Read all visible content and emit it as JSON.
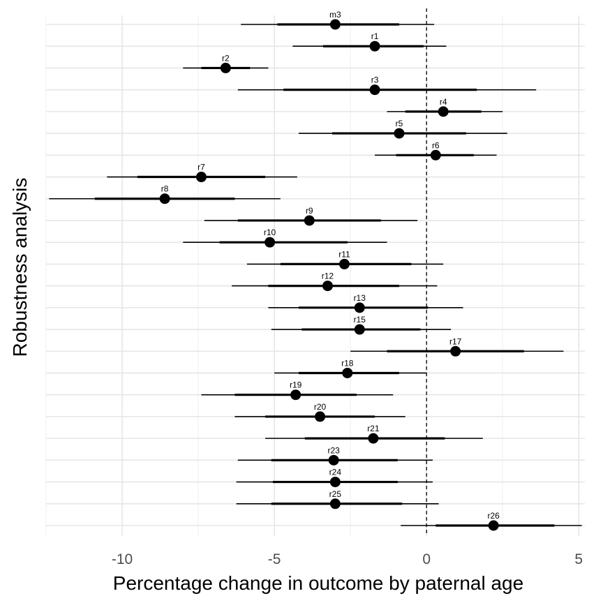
{
  "chart_data": {
    "type": "scatter",
    "title": "",
    "xlabel": "Percentage change in outcome by paternal age",
    "ylabel": "Robustness analysis",
    "xlim": [
      -12.5,
      5.2
    ],
    "x_ticks": [
      -10,
      -5,
      0,
      5
    ],
    "x_tick_labels": [
      "-10",
      "-5",
      "0",
      "5"
    ],
    "reference_line_x": 0,
    "grid": true,
    "legend": "none",
    "point_color": "#000000",
    "points": [
      {
        "label": "m3",
        "estimate": -3.0,
        "inner_low": -4.9,
        "inner_high": -0.9,
        "outer_low": -6.1,
        "outer_high": 0.25
      },
      {
        "label": "r1",
        "estimate": -1.7,
        "inner_low": -3.4,
        "inner_high": -0.1,
        "outer_low": -4.4,
        "outer_high": 0.65
      },
      {
        "label": "r2",
        "estimate": -6.6,
        "inner_low": -7.4,
        "inner_high": -5.8,
        "outer_low": -8.0,
        "outer_high": -5.2
      },
      {
        "label": "r3",
        "estimate": -1.7,
        "inner_low": -4.7,
        "inner_high": 1.65,
        "outer_low": -6.2,
        "outer_high": 3.6
      },
      {
        "label": "r4",
        "estimate": 0.55,
        "inner_low": -0.7,
        "inner_high": 1.8,
        "outer_low": -1.3,
        "outer_high": 2.5
      },
      {
        "label": "r5",
        "estimate": -0.9,
        "inner_low": -3.1,
        "inner_high": 1.3,
        "outer_low": -4.2,
        "outer_high": 2.65
      },
      {
        "label": "r6",
        "estimate": 0.3,
        "inner_low": -1.0,
        "inner_high": 1.55,
        "outer_low": -1.7,
        "outer_high": 2.3
      },
      {
        "label": "r7",
        "estimate": -7.4,
        "inner_low": -9.5,
        "inner_high": -5.3,
        "outer_low": -10.5,
        "outer_high": -4.25
      },
      {
        "label": "r8",
        "estimate": -8.6,
        "inner_low": -10.9,
        "inner_high": -6.3,
        "outer_low": -12.4,
        "outer_high": -4.8
      },
      {
        "label": "r9",
        "estimate": -3.85,
        "inner_low": -6.2,
        "inner_high": -1.5,
        "outer_low": -7.3,
        "outer_high": -0.3
      },
      {
        "label": "r10",
        "estimate": -5.15,
        "inner_low": -6.8,
        "inner_high": -2.6,
        "outer_low": -8.0,
        "outer_high": -1.3
      },
      {
        "label": "r11",
        "estimate": -2.7,
        "inner_low": -4.8,
        "inner_high": -0.5,
        "outer_low": -5.9,
        "outer_high": 0.55
      },
      {
        "label": "r12",
        "estimate": -3.25,
        "inner_low": -5.2,
        "inner_high": -0.9,
        "outer_low": -6.4,
        "outer_high": 0.35
      },
      {
        "label": "r13",
        "estimate": -2.2,
        "inner_low": -4.2,
        "inner_high": 0.05,
        "outer_low": -5.2,
        "outer_high": 1.2
      },
      {
        "label": "r15",
        "estimate": -2.2,
        "inner_low": -4.1,
        "inner_high": -0.2,
        "outer_low": -5.1,
        "outer_high": 0.8
      },
      {
        "label": "r17",
        "estimate": 0.95,
        "inner_low": -1.3,
        "inner_high": 3.2,
        "outer_low": -2.5,
        "outer_high": 4.5
      },
      {
        "label": "r18",
        "estimate": -2.6,
        "inner_low": -4.2,
        "inner_high": -0.9,
        "outer_low": -5.0,
        "outer_high": 0.0
      },
      {
        "label": "r19",
        "estimate": -4.3,
        "inner_low": -6.3,
        "inner_high": -2.3,
        "outer_low": -7.4,
        "outer_high": -1.1
      },
      {
        "label": "r20",
        "estimate": -3.5,
        "inner_low": -5.3,
        "inner_high": -1.7,
        "outer_low": -6.3,
        "outer_high": -0.7
      },
      {
        "label": "r21",
        "estimate": -1.75,
        "inner_low": -4.0,
        "inner_high": 0.6,
        "outer_low": -5.3,
        "outer_high": 1.85
      },
      {
        "label": "r23",
        "estimate": -3.05,
        "inner_low": -5.1,
        "inner_high": -0.95,
        "outer_low": -6.2,
        "outer_high": 0.2
      },
      {
        "label": "r24",
        "estimate": -3.0,
        "inner_low": -5.05,
        "inner_high": -0.95,
        "outer_low": -6.25,
        "outer_high": 0.2
      },
      {
        "label": "r25",
        "estimate": -3.0,
        "inner_low": -5.1,
        "inner_high": -0.8,
        "outer_low": -6.25,
        "outer_high": 0.4
      },
      {
        "label": "r26",
        "estimate": 2.2,
        "inner_low": 0.3,
        "inner_high": 4.2,
        "outer_low": -0.85,
        "outer_high": 5.1
      }
    ]
  }
}
